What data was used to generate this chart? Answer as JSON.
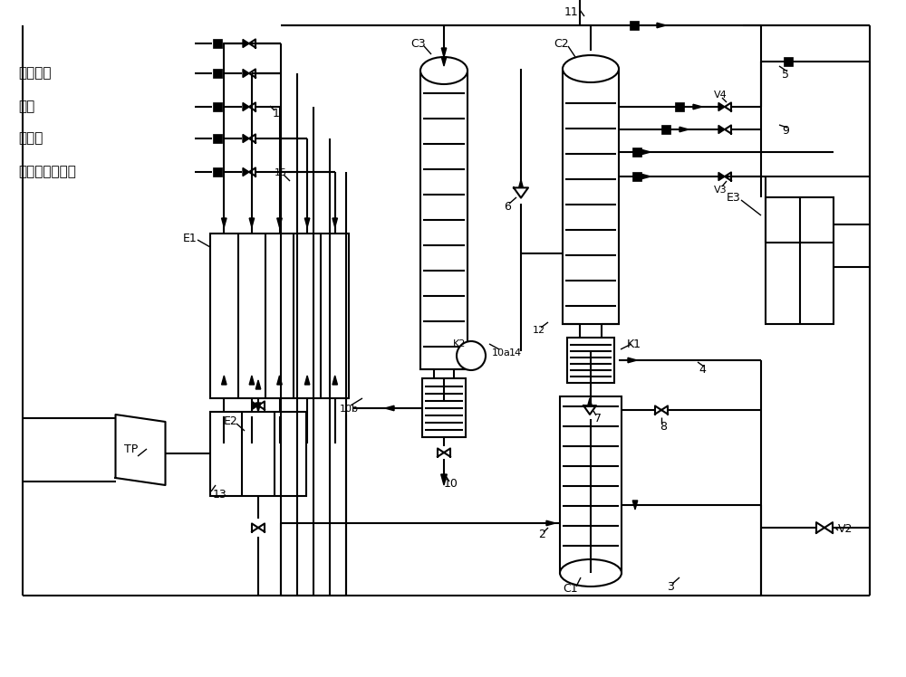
{
  "bg_color": "#ffffff",
  "line_color": "#000000",
  "lw": 1.5,
  "labels_left": [
    "高纯氮气",
    "空气",
    "污氮气",
    "富氧气（废气）"
  ],
  "components": {
    "C1": "C1",
    "C2": "C2",
    "C3": "C3",
    "E1": "E1",
    "E2": "E2",
    "E3": "E3",
    "K1": "K1",
    "K2": "K2",
    "TP": "TP",
    "V2": "V2",
    "V3": "V3",
    "V4": "V4"
  }
}
